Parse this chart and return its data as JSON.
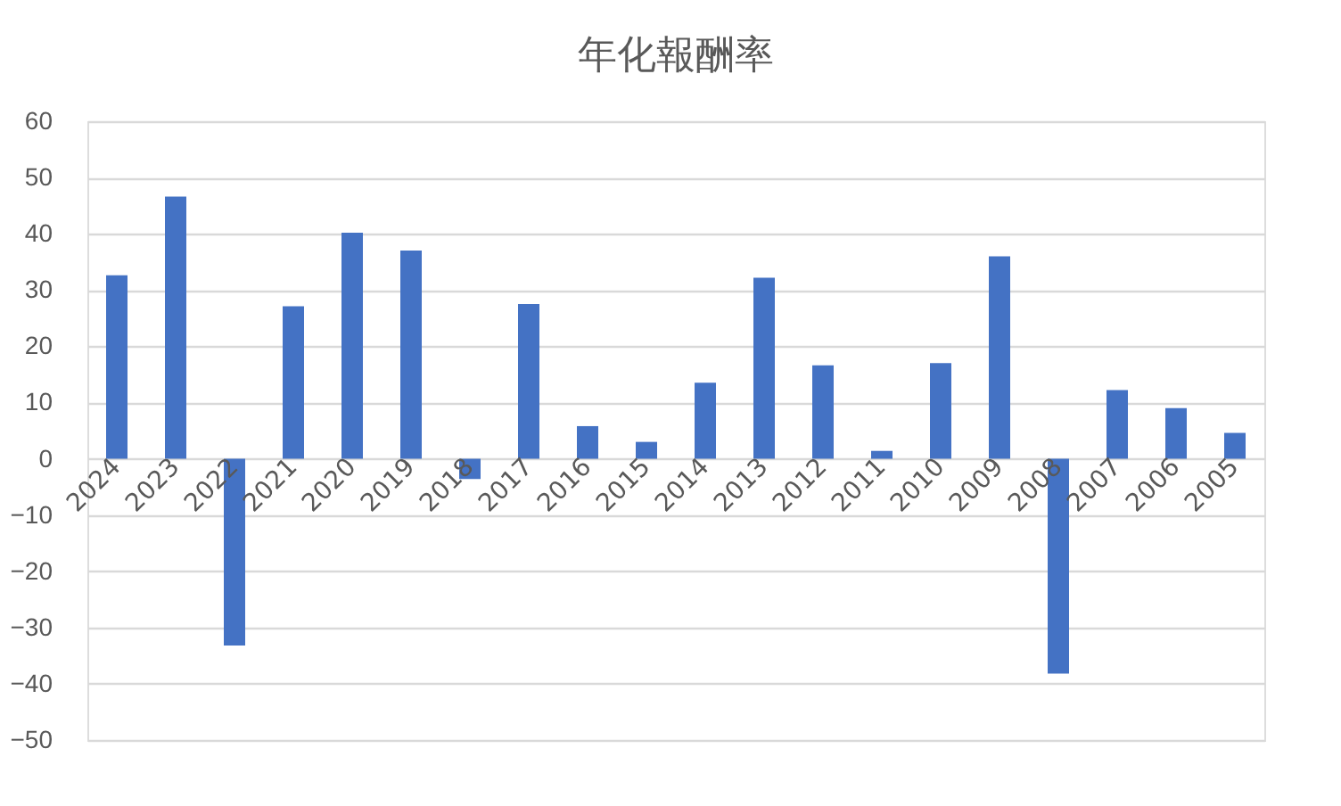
{
  "chart_data": {
    "type": "bar",
    "title": "年化報酬率",
    "categories": [
      "2024",
      "2023",
      "2022",
      "2021",
      "2020",
      "2019",
      "2018",
      "2017",
      "2016",
      "2015",
      "2014",
      "2013",
      "2012",
      "2011",
      "2010",
      "2009",
      "2008",
      "2007",
      "2006",
      "2005"
    ],
    "values": [
      32.6,
      46.6,
      -33.2,
      27.1,
      40.2,
      37.0,
      -3.6,
      27.5,
      5.8,
      3.0,
      13.5,
      32.2,
      16.6,
      1.4,
      17.0,
      36.0,
      -38.2,
      12.2,
      9.0,
      4.6
    ],
    "color": "#4472c4",
    "ylim": [
      -50,
      60
    ],
    "yticks": [
      -50,
      -40,
      -30,
      -20,
      -10,
      0,
      10,
      20,
      30,
      40,
      50,
      60
    ],
    "grid": "y"
  }
}
